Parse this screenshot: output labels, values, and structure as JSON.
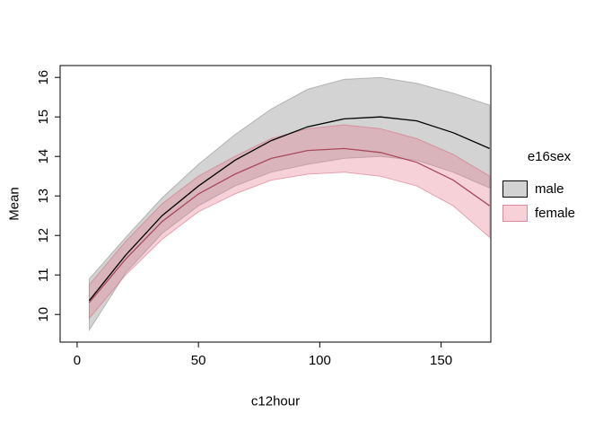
{
  "chart_data": {
    "type": "line",
    "title": "",
    "xlabel": "c12hour",
    "ylabel": "Mean",
    "legend_title": "e16sex",
    "legend_position": "right",
    "grid": false,
    "xlim": [
      0,
      170
    ],
    "ylim": [
      9.3,
      16.3
    ],
    "xticks": [
      0,
      50,
      100,
      150
    ],
    "yticks": [
      10,
      11,
      12,
      13,
      14,
      15,
      16
    ],
    "x": [
      5,
      20,
      35,
      50,
      65,
      80,
      95,
      110,
      125,
      140,
      155,
      170
    ],
    "series": [
      {
        "name": "male",
        "line_color": "#000000",
        "band_fill": "rgba(128,128,128,0.35)",
        "band_edge": "rgba(90,90,90,0.35)",
        "swatch_fill": "#d2d2d2",
        "swatch_border": "#000000",
        "values": [
          10.35,
          11.5,
          12.5,
          13.25,
          13.9,
          14.4,
          14.75,
          14.95,
          15.0,
          14.9,
          14.6,
          14.2
        ],
        "upper": [
          10.9,
          11.95,
          12.95,
          13.8,
          14.55,
          15.2,
          15.7,
          15.95,
          16.0,
          15.85,
          15.6,
          15.3
        ],
        "lower": [
          9.6,
          11.05,
          12.05,
          12.75,
          13.25,
          13.6,
          13.8,
          13.95,
          14.0,
          13.9,
          13.6,
          13.2
        ]
      },
      {
        "name": "female",
        "line_color": "#a8495b",
        "band_fill": "rgba(233,122,143,0.35)",
        "band_edge": "rgba(210,110,130,0.55)",
        "swatch_fill": "#f7d0d8",
        "swatch_border": "#d98a9b",
        "values": [
          10.3,
          11.4,
          12.35,
          13.05,
          13.55,
          13.95,
          14.15,
          14.2,
          14.1,
          13.85,
          13.4,
          12.75
        ],
        "upper": [
          10.75,
          11.85,
          12.8,
          13.5,
          14.0,
          14.45,
          14.7,
          14.8,
          14.7,
          14.45,
          14.05,
          13.5
        ],
        "lower": [
          9.9,
          11.0,
          11.9,
          12.6,
          13.05,
          13.4,
          13.55,
          13.6,
          13.5,
          13.25,
          12.75,
          11.95
        ]
      }
    ]
  }
}
